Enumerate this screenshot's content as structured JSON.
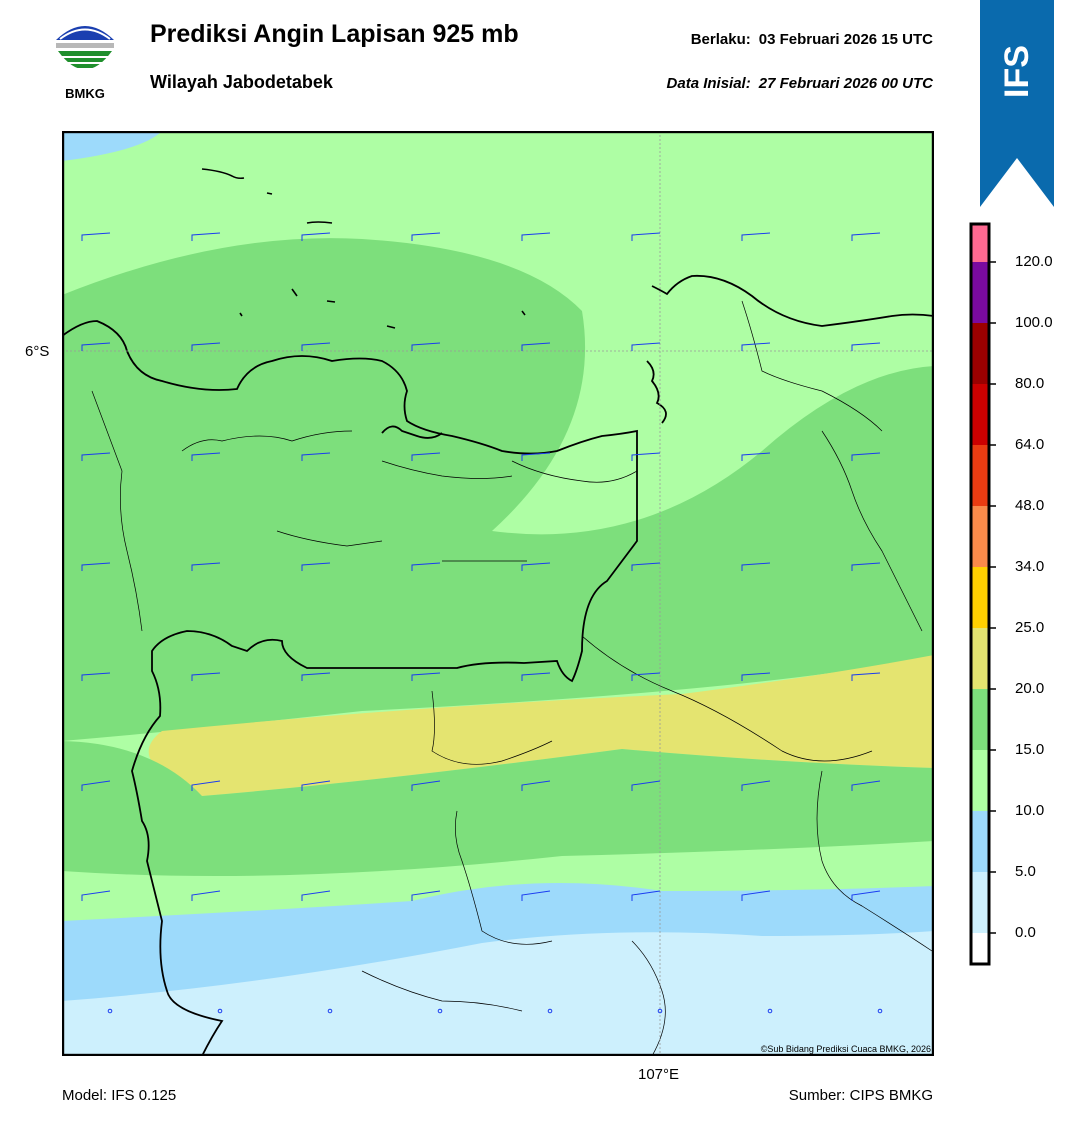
{
  "header": {
    "title": "Prediksi Angin Lapisan 925 mb",
    "subtitle": "Wilayah Jabodetabek",
    "valid_label": "Berlaku:",
    "valid_value": "03 Februari 2026 15 UTC",
    "init_label": "Data Inisial:",
    "init_value": "27 Februari 2026 00 UTC"
  },
  "logo": {
    "text": "BMKG",
    "icon": "bmkg-logo-icon"
  },
  "ribbon": {
    "text": "IFS",
    "color": "#0a6aad"
  },
  "map": {
    "lat_label": "6°S",
    "lon_label": "107°E",
    "copyright": "©Sub Bidang Prediksi Cuaca BMKG, 2026"
  },
  "footer": {
    "model": "Model: IFS 0.125",
    "source": "Sumber: CIPS BMKG"
  },
  "legend": {
    "ticks": [
      "0.0",
      "5.0",
      "10.0",
      "15.0",
      "20.0",
      "25.0",
      "34.0",
      "48.0",
      "64.0",
      "80.0",
      "100.0",
      "120.0"
    ],
    "colors": [
      "#ffffff",
      "#cdf0fd",
      "#9ddafb",
      "#aefea4",
      "#7ddf7c",
      "#e4e470",
      "#ffd000",
      "#f98a4a",
      "#ea3c12",
      "#cc0000",
      "#9b0000",
      "#7a0aa0",
      "#fe6a92"
    ]
  }
}
